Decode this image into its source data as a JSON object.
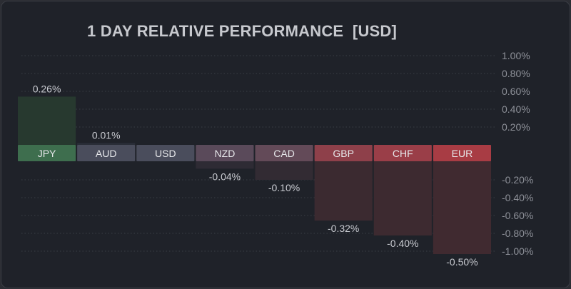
{
  "title": "1 DAY RELATIVE PERFORMANCE  [USD]",
  "chart_data": {
    "type": "bar",
    "title": "1 DAY RELATIVE PERFORMANCE  [USD]",
    "categories": [
      "JPY",
      "AUD",
      "USD",
      "NZD",
      "CAD",
      "GBP",
      "CHF",
      "EUR"
    ],
    "values": [
      0.26,
      0.01,
      0.0,
      -0.04,
      -0.1,
      -0.32,
      -0.4,
      -0.5
    ],
    "value_labels": [
      "0.26%",
      "0.01%",
      "",
      "-0.04%",
      "-0.10%",
      "-0.32%",
      "-0.40%",
      "-0.50%"
    ],
    "label_colors": [
      "#3e6e4e",
      "#4a4d5c",
      "#4a4d5c",
      "#5a4a5a",
      "#634a58",
      "#8e404a",
      "#9a3e48",
      "#a83c44"
    ],
    "bar_colors": [
      "#27392f",
      "#2a2e38",
      "#2a2d35",
      "#2e2b34",
      "#322b33",
      "#3b2a30",
      "#3d2a30",
      "#402a30"
    ],
    "ylim": [
      -1.0,
      1.0
    ],
    "y_ticks_upper": [
      "1.00%",
      "0.80%",
      "0.60%",
      "0.40%",
      "0.20%"
    ],
    "y_ticks_lower": [
      "-0.20%",
      "-0.40%",
      "-0.60%",
      "-0.80%",
      "-1.00%"
    ],
    "grid": true,
    "colors": {
      "positive": "#3e6e4e",
      "negative": "#a83c44",
      "text": "#c9cbd1",
      "tick": "#8e9199"
    }
  }
}
